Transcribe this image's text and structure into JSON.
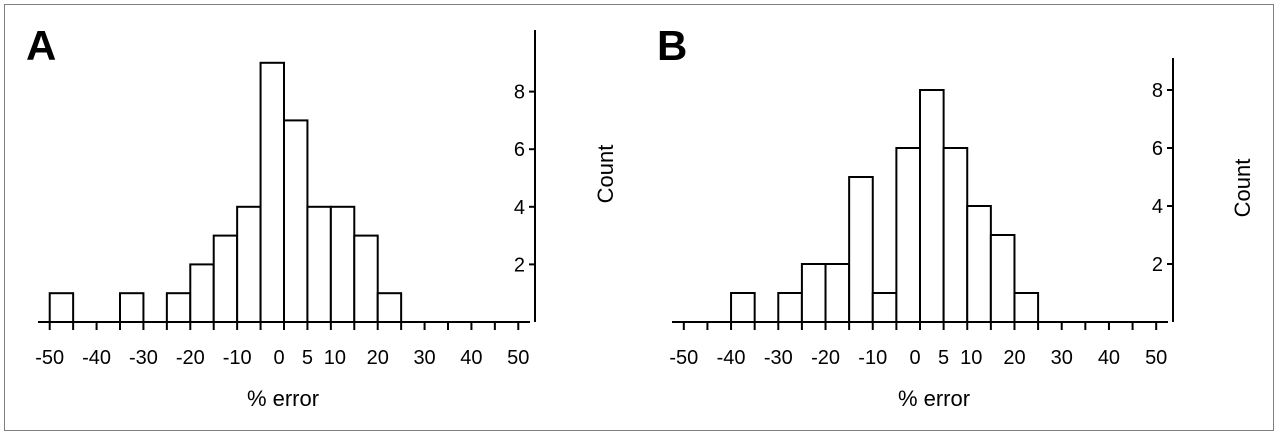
{
  "chart_data": [
    {
      "type": "bar",
      "panel_label": "A",
      "xlabel": "% error",
      "ylabel": "Count",
      "x_ticks": [
        -50,
        -40,
        -30,
        -20,
        -10,
        0,
        5,
        10,
        20,
        30,
        40,
        50
      ],
      "x_tick_labels": [
        "-50",
        "-40",
        "-30",
        "-20",
        "-10",
        "0",
        "5",
        "10",
        "20",
        "30",
        "40",
        "50"
      ],
      "xlim": [
        -52.5,
        52.5
      ],
      "y_ticks": [
        2,
        4,
        6,
        8
      ],
      "ylim": [
        0,
        10
      ],
      "bin_width": 5,
      "bins": [
        {
          "start": -50,
          "end": -45,
          "count": 1
        },
        {
          "start": -35,
          "end": -30,
          "count": 1
        },
        {
          "start": -25,
          "end": -20,
          "count": 1
        },
        {
          "start": -20,
          "end": -15,
          "count": 2
        },
        {
          "start": -15,
          "end": -10,
          "count": 3
        },
        {
          "start": -10,
          "end": -5,
          "count": 4
        },
        {
          "start": -5,
          "end": 0,
          "count": 9
        },
        {
          "start": 0,
          "end": 5,
          "count": 7
        },
        {
          "start": 5,
          "end": 10,
          "count": 4
        },
        {
          "start": 10,
          "end": 15,
          "count": 4
        },
        {
          "start": 15,
          "end": 20,
          "count": 3
        },
        {
          "start": 20,
          "end": 25,
          "count": 1
        }
      ]
    },
    {
      "type": "bar",
      "panel_label": "B",
      "xlabel": "% error",
      "ylabel": "Count",
      "x_ticks": [
        -50,
        -40,
        -30,
        -20,
        -10,
        0,
        5,
        10,
        20,
        30,
        40,
        50
      ],
      "x_tick_labels": [
        "-50",
        "-40",
        "-30",
        "-20",
        "-10",
        "0",
        "5",
        "10",
        "20",
        "30",
        "40",
        "50"
      ],
      "xlim": [
        -52.5,
        52.5
      ],
      "y_ticks": [
        2,
        4,
        6,
        8
      ],
      "ylim": [
        0,
        9
      ],
      "bin_width": 5,
      "bins": [
        {
          "start": -40,
          "end": -35,
          "count": 1
        },
        {
          "start": -30,
          "end": -25,
          "count": 1
        },
        {
          "start": -25,
          "end": -20,
          "count": 2
        },
        {
          "start": -20,
          "end": -15,
          "count": 2
        },
        {
          "start": -15,
          "end": -10,
          "count": 5
        },
        {
          "start": -10,
          "end": -5,
          "count": 1
        },
        {
          "start": -5,
          "end": 0,
          "count": 6
        },
        {
          "start": 0,
          "end": 5,
          "count": 8
        },
        {
          "start": 5,
          "end": 10,
          "count": 6
        },
        {
          "start": 10,
          "end": 15,
          "count": 4
        },
        {
          "start": 15,
          "end": 20,
          "count": 3
        },
        {
          "start": 20,
          "end": 25,
          "count": 1
        }
      ]
    }
  ]
}
